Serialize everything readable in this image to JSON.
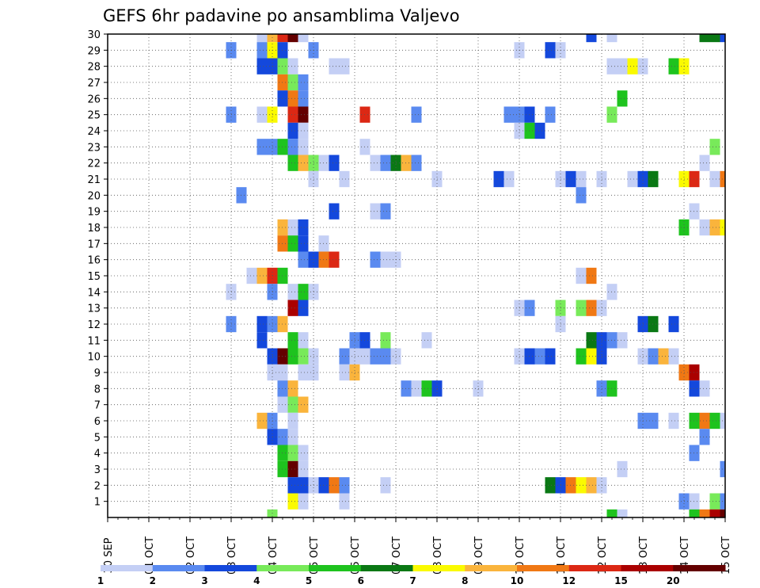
{
  "chart_data": {
    "type": "heatmap",
    "title": "GEFS 6hr padavine po ansamblima Valjevo",
    "xlabel": "",
    "ylabel": "",
    "x_axis": {
      "unit": "6-hour step",
      "range": [
        0,
        60
      ],
      "tick_labels": [
        "30 SEP",
        "01 OCT",
        "02 OCT",
        "03 OCT",
        "04 OCT",
        "05 OCT",
        "06 OCT",
        "07 OCT",
        "08 OCT",
        "09 OCT",
        "10 OCT",
        "11 OCT",
        "12 OCT",
        "13 OCT",
        "14 OCT",
        "15 OCT"
      ]
    },
    "y_axis": {
      "unit": "ensemble member",
      "range": [
        0,
        30
      ],
      "tick_labels": [
        "1",
        "2",
        "3",
        "4",
        "5",
        "6",
        "7",
        "8",
        "9",
        "10",
        "11",
        "12",
        "13",
        "14",
        "15",
        "16",
        "17",
        "18",
        "19",
        "20",
        "21",
        "22",
        "23",
        "24",
        "25",
        "26",
        "27",
        "28",
        "29",
        "30"
      ]
    },
    "grid": true,
    "colorbar": {
      "placement": "bottom",
      "levels": [
        "1",
        "2",
        "3",
        "4",
        "5",
        "6",
        "7",
        "8",
        "10",
        "12",
        "15",
        "20"
      ],
      "colors": [
        "#c4cff5",
        "#5a8af0",
        "#1448dc",
        "#78ea5a",
        "#1ec31e",
        "#0a7814",
        "#fafa00",
        "#fab43c",
        "#f07814",
        "#dc2814",
        "#aa0000",
        "#640000"
      ]
    },
    "cells": [
      [
        15,
        30,
        1
      ],
      [
        16,
        30,
        8
      ],
      [
        17,
        30,
        10
      ],
      [
        18,
        30,
        12
      ],
      [
        19,
        30,
        1
      ],
      [
        47,
        30,
        3
      ],
      [
        49,
        30,
        1
      ],
      [
        58,
        30,
        6
      ],
      [
        59,
        30,
        6
      ],
      [
        60,
        30,
        3
      ],
      [
        12,
        29,
        2
      ],
      [
        15,
        29,
        2
      ],
      [
        16,
        29,
        7
      ],
      [
        17,
        29,
        3
      ],
      [
        20,
        29,
        2
      ],
      [
        40,
        29,
        1
      ],
      [
        43,
        29,
        3
      ],
      [
        44,
        29,
        1
      ],
      [
        15,
        28,
        3
      ],
      [
        16,
        28,
        3
      ],
      [
        17,
        28,
        4
      ],
      [
        18,
        28,
        1
      ],
      [
        22,
        28,
        1
      ],
      [
        23,
        28,
        1
      ],
      [
        49,
        28,
        1
      ],
      [
        50,
        28,
        1
      ],
      [
        51,
        28,
        7
      ],
      [
        52,
        28,
        1
      ],
      [
        55,
        28,
        5
      ],
      [
        56,
        28,
        7
      ],
      [
        17,
        27,
        9
      ],
      [
        18,
        27,
        4
      ],
      [
        19,
        27,
        2
      ],
      [
        17,
        26,
        3
      ],
      [
        18,
        26,
        9
      ],
      [
        19,
        26,
        2
      ],
      [
        50,
        26,
        5
      ],
      [
        12,
        25,
        2
      ],
      [
        15,
        25,
        1
      ],
      [
        16,
        25,
        7
      ],
      [
        18,
        25,
        10
      ],
      [
        19,
        25,
        12
      ],
      [
        25,
        25,
        10
      ],
      [
        30,
        25,
        2
      ],
      [
        39,
        25,
        2
      ],
      [
        40,
        25,
        2
      ],
      [
        41,
        25,
        3
      ],
      [
        43,
        25,
        2
      ],
      [
        49,
        25,
        4
      ],
      [
        18,
        24,
        3
      ],
      [
        19,
        24,
        1
      ],
      [
        40,
        24,
        1
      ],
      [
        41,
        24,
        5
      ],
      [
        42,
        24,
        3
      ],
      [
        15,
        23,
        2
      ],
      [
        16,
        23,
        2
      ],
      [
        17,
        23,
        5
      ],
      [
        18,
        23,
        2
      ],
      [
        19,
        23,
        1
      ],
      [
        25,
        23,
        1
      ],
      [
        59,
        23,
        4
      ],
      [
        18,
        22,
        5
      ],
      [
        19,
        22,
        8
      ],
      [
        20,
        22,
        4
      ],
      [
        21,
        22,
        1
      ],
      [
        22,
        22,
        3
      ],
      [
        26,
        22,
        1
      ],
      [
        27,
        22,
        2
      ],
      [
        28,
        22,
        6
      ],
      [
        29,
        22,
        8
      ],
      [
        30,
        22,
        2
      ],
      [
        58,
        22,
        1
      ],
      [
        20,
        21,
        1
      ],
      [
        23,
        21,
        1
      ],
      [
        32,
        21,
        1
      ],
      [
        38,
        21,
        3
      ],
      [
        39,
        21,
        1
      ],
      [
        44,
        21,
        1
      ],
      [
        45,
        21,
        3
      ],
      [
        46,
        21,
        1
      ],
      [
        48,
        21,
        1
      ],
      [
        51,
        21,
        1
      ],
      [
        52,
        21,
        3
      ],
      [
        53,
        21,
        6
      ],
      [
        56,
        21,
        7
      ],
      [
        57,
        21,
        10
      ],
      [
        59,
        21,
        1
      ],
      [
        60,
        21,
        9
      ],
      [
        13,
        20,
        2
      ],
      [
        46,
        20,
        2
      ],
      [
        22,
        19,
        3
      ],
      [
        26,
        19,
        1
      ],
      [
        27,
        19,
        2
      ],
      [
        57,
        19,
        1
      ],
      [
        17,
        18,
        8
      ],
      [
        18,
        18,
        1
      ],
      [
        19,
        18,
        3
      ],
      [
        56,
        18,
        5
      ],
      [
        58,
        18,
        1
      ],
      [
        59,
        18,
        8
      ],
      [
        60,
        18,
        7
      ],
      [
        17,
        17,
        9
      ],
      [
        18,
        17,
        5
      ],
      [
        19,
        17,
        3
      ],
      [
        21,
        17,
        1
      ],
      [
        19,
        16,
        2
      ],
      [
        20,
        16,
        3
      ],
      [
        21,
        16,
        9
      ],
      [
        22,
        16,
        10
      ],
      [
        26,
        16,
        2
      ],
      [
        27,
        16,
        1
      ],
      [
        28,
        16,
        1
      ],
      [
        14,
        15,
        1
      ],
      [
        15,
        15,
        8
      ],
      [
        16,
        15,
        10
      ],
      [
        17,
        15,
        5
      ],
      [
        46,
        15,
        1
      ],
      [
        47,
        15,
        9
      ],
      [
        12,
        14,
        1
      ],
      [
        16,
        14,
        2
      ],
      [
        18,
        14,
        1
      ],
      [
        19,
        14,
        5
      ],
      [
        20,
        14,
        1
      ],
      [
        49,
        14,
        1
      ],
      [
        18,
        13,
        11
      ],
      [
        19,
        13,
        3
      ],
      [
        40,
        13,
        1
      ],
      [
        41,
        13,
        2
      ],
      [
        44,
        13,
        4
      ],
      [
        46,
        13,
        4
      ],
      [
        47,
        13,
        9
      ],
      [
        48,
        13,
        1
      ],
      [
        12,
        12,
        2
      ],
      [
        15,
        12,
        3
      ],
      [
        16,
        12,
        2
      ],
      [
        17,
        12,
        8
      ],
      [
        44,
        12,
        1
      ],
      [
        52,
        12,
        3
      ],
      [
        53,
        12,
        6
      ],
      [
        55,
        12,
        3
      ],
      [
        15,
        11,
        3
      ],
      [
        18,
        11,
        5
      ],
      [
        19,
        11,
        1
      ],
      [
        24,
        11,
        2
      ],
      [
        25,
        11,
        3
      ],
      [
        27,
        11,
        4
      ],
      [
        31,
        11,
        1
      ],
      [
        47,
        11,
        6
      ],
      [
        48,
        11,
        3
      ],
      [
        49,
        11,
        2
      ],
      [
        50,
        11,
        1
      ],
      [
        16,
        10,
        3
      ],
      [
        17,
        10,
        12
      ],
      [
        18,
        10,
        5
      ],
      [
        19,
        10,
        4
      ],
      [
        20,
        10,
        1
      ],
      [
        23,
        10,
        2
      ],
      [
        24,
        10,
        1
      ],
      [
        25,
        10,
        1
      ],
      [
        26,
        10,
        2
      ],
      [
        27,
        10,
        2
      ],
      [
        28,
        10,
        1
      ],
      [
        40,
        10,
        1
      ],
      [
        41,
        10,
        3
      ],
      [
        42,
        10,
        2
      ],
      [
        43,
        10,
        3
      ],
      [
        46,
        10,
        5
      ],
      [
        47,
        10,
        7
      ],
      [
        48,
        10,
        3
      ],
      [
        52,
        10,
        1
      ],
      [
        53,
        10,
        2
      ],
      [
        54,
        10,
        8
      ],
      [
        55,
        10,
        1
      ],
      [
        16,
        9,
        1
      ],
      [
        17,
        9,
        1
      ],
      [
        19,
        9,
        1
      ],
      [
        20,
        9,
        1
      ],
      [
        23,
        9,
        1
      ],
      [
        24,
        9,
        8
      ],
      [
        56,
        9,
        9
      ],
      [
        57,
        9,
        11
      ],
      [
        17,
        8,
        2
      ],
      [
        18,
        8,
        8
      ],
      [
        29,
        8,
        2
      ],
      [
        30,
        8,
        1
      ],
      [
        31,
        8,
        5
      ],
      [
        32,
        8,
        3
      ],
      [
        36,
        8,
        1
      ],
      [
        48,
        8,
        2
      ],
      [
        49,
        8,
        5
      ],
      [
        57,
        8,
        3
      ],
      [
        58,
        8,
        1
      ],
      [
        17,
        7,
        1
      ],
      [
        18,
        7,
        4
      ],
      [
        19,
        7,
        8
      ],
      [
        15,
        6,
        8
      ],
      [
        16,
        6,
        2
      ],
      [
        18,
        6,
        1
      ],
      [
        52,
        6,
        2
      ],
      [
        53,
        6,
        2
      ],
      [
        55,
        6,
        1
      ],
      [
        57,
        6,
        5
      ],
      [
        58,
        6,
        9
      ],
      [
        59,
        6,
        5
      ],
      [
        60,
        6,
        1
      ],
      [
        16,
        5,
        3
      ],
      [
        17,
        5,
        2
      ],
      [
        18,
        5,
        1
      ],
      [
        58,
        5,
        2
      ],
      [
        17,
        4,
        5
      ],
      [
        18,
        4,
        4
      ],
      [
        19,
        4,
        1
      ],
      [
        57,
        4,
        2
      ],
      [
        17,
        3,
        5
      ],
      [
        18,
        3,
        12
      ],
      [
        19,
        3,
        1
      ],
      [
        50,
        3,
        1
      ],
      [
        60,
        3,
        2
      ],
      [
        18,
        2,
        3
      ],
      [
        19,
        2,
        3
      ],
      [
        20,
        2,
        1
      ],
      [
        21,
        2,
        3
      ],
      [
        22,
        2,
        9
      ],
      [
        23,
        2,
        2
      ],
      [
        27,
        2,
        1
      ],
      [
        43,
        2,
        6
      ],
      [
        44,
        2,
        3
      ],
      [
        45,
        2,
        9
      ],
      [
        46,
        2,
        7
      ],
      [
        47,
        2,
        8
      ],
      [
        48,
        2,
        1
      ],
      [
        18,
        1,
        7
      ],
      [
        19,
        1,
        1
      ],
      [
        23,
        1,
        1
      ],
      [
        56,
        1,
        2
      ],
      [
        57,
        1,
        1
      ],
      [
        59,
        1,
        4
      ],
      [
        60,
        1,
        2
      ],
      [
        16,
        0,
        4
      ],
      [
        49,
        0,
        5
      ],
      [
        50,
        0,
        1
      ],
      [
        57,
        0,
        5
      ],
      [
        58,
        0,
        9
      ],
      [
        59,
        0,
        11
      ],
      [
        60,
        0,
        12
      ]
    ]
  }
}
